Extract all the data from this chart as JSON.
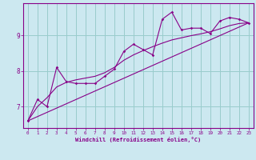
{
  "xlabel": "Windchill (Refroidissement éolien,°C)",
  "background_color": "#cce8f0",
  "line_color": "#880088",
  "grid_color": "#99cccc",
  "xlim": [
    -0.5,
    23.5
  ],
  "ylim": [
    6.4,
    9.9
  ],
  "yticks": [
    7,
    8,
    9
  ],
  "xticks": [
    0,
    1,
    2,
    3,
    4,
    5,
    6,
    7,
    8,
    9,
    10,
    11,
    12,
    13,
    14,
    15,
    16,
    17,
    18,
    19,
    20,
    21,
    22,
    23
  ],
  "scatter_x": [
    0,
    1,
    2,
    3,
    4,
    5,
    6,
    7,
    8,
    9,
    10,
    11,
    12,
    13,
    14,
    15,
    16,
    17,
    18,
    19,
    20,
    21,
    22,
    23
  ],
  "scatter_y": [
    6.6,
    7.2,
    7.0,
    8.1,
    7.7,
    7.65,
    7.65,
    7.65,
    7.85,
    8.05,
    8.55,
    8.75,
    8.6,
    8.45,
    9.45,
    9.65,
    9.15,
    9.2,
    9.2,
    9.05,
    9.4,
    9.5,
    9.45,
    9.35
  ],
  "line2_x": [
    0,
    23
  ],
  "line2_y": [
    6.6,
    9.35
  ],
  "smooth_x": [
    0,
    1,
    2,
    3,
    4,
    5,
    6,
    7,
    8,
    9,
    10,
    11,
    12,
    13,
    14,
    15,
    16,
    17,
    18,
    19,
    20,
    21,
    22,
    23
  ],
  "smooth_y": [
    6.6,
    7.0,
    7.25,
    7.55,
    7.68,
    7.75,
    7.8,
    7.85,
    7.95,
    8.1,
    8.3,
    8.45,
    8.57,
    8.68,
    8.78,
    8.87,
    8.93,
    8.99,
    9.04,
    9.1,
    9.18,
    9.27,
    9.33,
    9.35
  ]
}
